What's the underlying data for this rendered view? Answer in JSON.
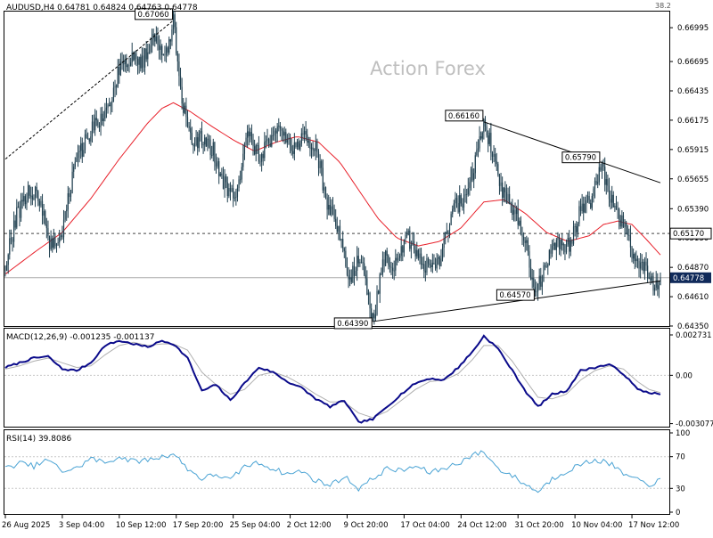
{
  "symbol_info": {
    "text": "AUDUSD,H4  0.64781  0.64824  0.64763  0.64778",
    "corner_value": "38.2",
    "watermark": "Action Forex"
  },
  "colors": {
    "background": "#ffffff",
    "frame": "#000000",
    "candles": "#1f3f4f",
    "moving_average": "#e8202a",
    "macd_line": "#0a0a8a",
    "macd_signal": "#b0b0b0",
    "rsi_line": "#4aa3d4",
    "trendline": "#000000",
    "price_tag_bg": "#102a5a",
    "watermark": "#bfbfbf"
  },
  "x_axis": {
    "labels": [
      "26 Aug 2025",
      "3 Sep 04:00",
      "10 Sep 12:00",
      "17 Sep 20:00",
      "25 Sep 04:00",
      "2 Oct 12:00",
      "9 Oct 20:00",
      "17 Oct 04:00",
      "24 Oct 12:00",
      "31 Oct 20:00",
      "10 Nov 04:00",
      "17 Nov 12:00"
    ]
  },
  "chart_data": [
    {
      "type": "candlestick",
      "panel": "price",
      "title": "AUDUSD,H4",
      "ylim": [
        0.6435,
        0.6713
      ],
      "y_ticks": [
        "0.66995",
        "0.66695",
        "0.66435",
        "0.66175",
        "0.65915",
        "0.65655",
        "0.65390",
        "0.65130",
        "0.64870",
        "0.64610",
        "0.64350"
      ],
      "x_tick_index": [
        0,
        40,
        80,
        120,
        160,
        200,
        240,
        280,
        320,
        360,
        400,
        440
      ],
      "last_price": {
        "label": "0.64778",
        "value": 0.64778
      },
      "horizontal_line": {
        "label": "0.65170",
        "value": 0.6517,
        "style": "dashed"
      },
      "annotations": [
        {
          "label": "0.67060",
          "index": 118,
          "value": 0.6706
        },
        {
          "label": "0.64390",
          "index": 258,
          "value": 0.6439
        },
        {
          "label": "0.66160",
          "index": 336,
          "value": 0.6616
        },
        {
          "label": "0.64570",
          "index": 372,
          "value": 0.6457
        },
        {
          "label": "0.65790",
          "index": 418,
          "value": 0.6579
        }
      ],
      "trendlines": [
        {
          "style": "dashed",
          "from": {
            "index": 0,
            "value": 0.6583
          },
          "to": {
            "index": 118,
            "value": 0.6706
          }
        },
        {
          "style": "solid",
          "from": {
            "index": 258,
            "value": 0.6439
          },
          "to": {
            "index": 460,
            "value": 0.6475
          }
        },
        {
          "style": "solid",
          "from": {
            "index": 336,
            "value": 0.6616
          },
          "to": {
            "index": 460,
            "value": 0.6562
          }
        }
      ],
      "series": [
        {
          "kind": "close",
          "index": [
            0,
            8,
            16,
            24,
            32,
            40,
            48,
            56,
            64,
            72,
            80,
            88,
            96,
            104,
            112,
            118,
            124,
            130,
            138,
            146,
            154,
            162,
            170,
            178,
            186,
            194,
            202,
            210,
            218,
            226,
            234,
            242,
            250,
            258,
            266,
            274,
            282,
            290,
            298,
            306,
            314,
            322,
            330,
            336,
            342,
            350,
            358,
            366,
            372,
            380,
            388,
            396,
            404,
            412,
            418,
            426,
            434,
            442,
            450,
            456,
            460
          ],
          "values": [
            0.6488,
            0.6533,
            0.6555,
            0.6548,
            0.6505,
            0.6515,
            0.6575,
            0.6598,
            0.6615,
            0.6625,
            0.6662,
            0.6673,
            0.6668,
            0.6695,
            0.6672,
            0.6706,
            0.6634,
            0.66,
            0.66,
            0.659,
            0.656,
            0.6545,
            0.6612,
            0.6585,
            0.6598,
            0.6612,
            0.659,
            0.6603,
            0.6592,
            0.6545,
            0.652,
            0.6475,
            0.6498,
            0.6439,
            0.6495,
            0.6489,
            0.6515,
            0.6493,
            0.6488,
            0.6496,
            0.654,
            0.6545,
            0.658,
            0.6616,
            0.659,
            0.655,
            0.6535,
            0.6505,
            0.6463,
            0.649,
            0.651,
            0.6505,
            0.6538,
            0.6548,
            0.6579,
            0.6545,
            0.6523,
            0.6495,
            0.6485,
            0.6471,
            0.64778
          ]
        },
        {
          "kind": "moving_average",
          "index": [
            0,
            20,
            40,
            60,
            80,
            100,
            110,
            118,
            130,
            145,
            160,
            175,
            190,
            205,
            220,
            235,
            250,
            262,
            275,
            290,
            305,
            320,
            336,
            350,
            365,
            380,
            395,
            410,
            420,
            430,
            440,
            450,
            460
          ],
          "values": [
            0.6481,
            0.65,
            0.6518,
            0.6548,
            0.6583,
            0.6615,
            0.6628,
            0.6633,
            0.6625,
            0.6612,
            0.66,
            0.659,
            0.6598,
            0.6603,
            0.6598,
            0.658,
            0.6552,
            0.653,
            0.6513,
            0.6506,
            0.651,
            0.6522,
            0.6545,
            0.6547,
            0.6535,
            0.6518,
            0.651,
            0.6515,
            0.6525,
            0.6528,
            0.6525,
            0.6512,
            0.6498
          ]
        }
      ]
    },
    {
      "type": "line",
      "panel": "macd",
      "title": "MACD(12,26,9) -0.001235 -0.001137",
      "ylim": [
        -0.0031,
        0.0028
      ],
      "y_ticks": [
        "0.002731",
        "0.00",
        "-0.003077"
      ],
      "zero_line": 0,
      "series": [
        {
          "name": "MACD",
          "index": [
            0,
            10,
            20,
            30,
            40,
            50,
            60,
            70,
            80,
            90,
            100,
            110,
            118,
            128,
            138,
            148,
            158,
            168,
            178,
            188,
            198,
            208,
            218,
            228,
            238,
            248,
            258,
            268,
            278,
            288,
            298,
            308,
            318,
            328,
            336,
            346,
            356,
            366,
            374,
            384,
            394,
            404,
            414,
            424,
            434,
            444,
            452,
            460
          ],
          "values": [
            0.0005,
            0.0008,
            0.0011,
            0.0012,
            0.0004,
            0.0003,
            0.0008,
            0.0019,
            0.0022,
            0.002,
            0.0018,
            0.0022,
            0.002,
            0.0011,
            -0.001,
            -0.0006,
            -0.0016,
            -0.0005,
            0.0005,
            0.0002,
            -0.0004,
            -0.0008,
            -0.0015,
            -0.002,
            -0.0016,
            -0.003,
            -0.0028,
            -0.002,
            -0.0012,
            -0.0005,
            -0.0002,
            -0.0003,
            0.0005,
            0.0015,
            0.0025,
            0.0017,
            0.0003,
            -0.0011,
            -0.002,
            -0.0012,
            -0.001,
            0.0003,
            0.0005,
            0.0007,
            0.0001,
            -0.0009,
            -0.0011,
            -0.0012
          ]
        },
        {
          "name": "Signal",
          "index": [
            0,
            10,
            20,
            30,
            40,
            50,
            60,
            70,
            80,
            90,
            100,
            110,
            118,
            128,
            138,
            148,
            158,
            168,
            178,
            188,
            198,
            208,
            218,
            228,
            238,
            248,
            258,
            268,
            278,
            288,
            298,
            308,
            318,
            328,
            336,
            346,
            356,
            366,
            374,
            384,
            394,
            404,
            414,
            424,
            434,
            444,
            452,
            460
          ],
          "values": [
            0.0004,
            0.0006,
            0.0009,
            0.0011,
            0.0008,
            0.0005,
            0.0006,
            0.0013,
            0.0019,
            0.0021,
            0.0019,
            0.002,
            0.002,
            0.0016,
            0.0002,
            -0.0006,
            -0.0012,
            -0.0009,
            0.0,
            0.0002,
            -0.0001,
            -0.0006,
            -0.0012,
            -0.0017,
            -0.0017,
            -0.0024,
            -0.0027,
            -0.0023,
            -0.0016,
            -0.0009,
            -0.0004,
            -0.0003,
            0.0001,
            0.001,
            0.0019,
            0.0019,
            0.0009,
            -0.0004,
            -0.0014,
            -0.0015,
            -0.0012,
            -0.0003,
            0.0003,
            0.0006,
            0.0004,
            -0.0004,
            -0.0009,
            -0.0011
          ]
        }
      ]
    },
    {
      "type": "line",
      "panel": "rsi",
      "title": "RSI(14) 39.8086",
      "ylim": [
        0,
        100
      ],
      "y_ticks": [
        "100",
        "70",
        "30",
        "0"
      ],
      "levels": [
        70,
        30
      ],
      "series": [
        {
          "name": "RSI(14)",
          "index": [
            0,
            10,
            20,
            30,
            40,
            50,
            60,
            70,
            80,
            90,
            100,
            110,
            118,
            128,
            138,
            148,
            158,
            168,
            178,
            188,
            198,
            208,
            218,
            228,
            238,
            248,
            258,
            268,
            278,
            288,
            298,
            308,
            318,
            328,
            336,
            346,
            356,
            366,
            374,
            384,
            394,
            404,
            414,
            424,
            434,
            444,
            452,
            460
          ],
          "values": [
            55,
            62,
            58,
            66,
            52,
            55,
            68,
            62,
            70,
            64,
            66,
            70,
            74,
            55,
            42,
            48,
            40,
            58,
            62,
            55,
            48,
            52,
            40,
            34,
            45,
            30,
            42,
            55,
            52,
            58,
            50,
            55,
            62,
            72,
            76,
            55,
            46,
            34,
            26,
            42,
            52,
            60,
            66,
            62,
            48,
            40,
            35,
            39.8
          ]
        }
      ]
    }
  ]
}
